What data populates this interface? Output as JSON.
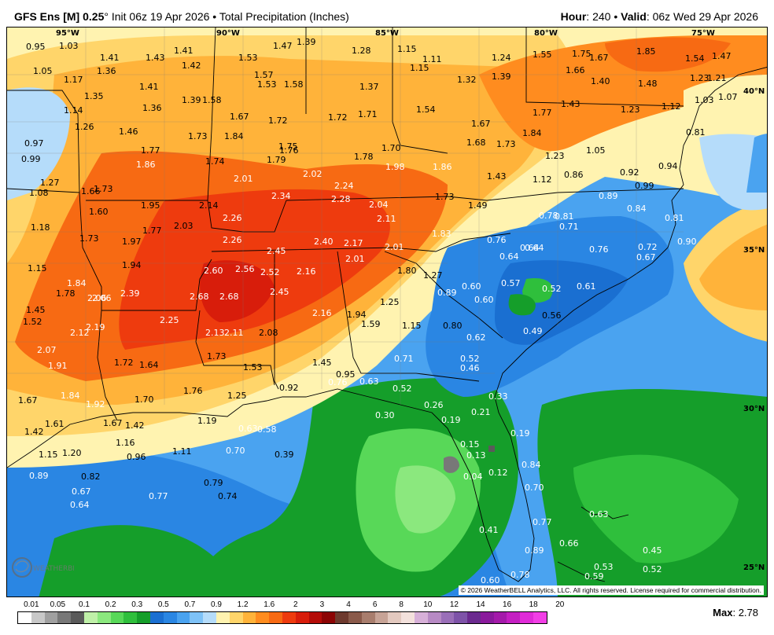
{
  "header": {
    "model": "GFS Ens [M] 0.25",
    "degree": "°",
    "init": "Init 06z 19 Apr 2026",
    "bullet": "•",
    "product": "Total Precipitation (Inches)",
    "hour_label": "Hour",
    "hour_value": ": 240",
    "valid_label": "Valid",
    "valid_value": ": 06z Wed 29 Apr 2026"
  },
  "map": {
    "copyright": "© 2026 WeatherBELL Analytics, LLC. All rights reserved. License required for commercial distribution.",
    "lon_labels": [
      "95°W",
      "90°W",
      "85°W",
      "80°W",
      "75°W"
    ],
    "lat_labels": [
      "40°N",
      "35°N",
      "30°N",
      "25°N"
    ],
    "values": [
      "0.95",
      "1.03",
      "1.41",
      "1.43",
      "1.41",
      "1.42",
      "1.53",
      "1.47",
      "1.39",
      "1.28",
      "1.15",
      "1.11",
      "1.15",
      "1.24",
      "1.55",
      "1.75",
      "1.67",
      "1.85",
      "1.54",
      "1.47",
      "1.05",
      "1.17",
      "1.36",
      "1.57",
      "1.58",
      "1.37",
      "1.32",
      "1.39",
      "1.66",
      "1.40",
      "1.48",
      "1.23",
      "1.21",
      "1.35",
      "1.41",
      "1.58",
      "1.53",
      "1.43",
      "1.03",
      "1.07",
      "1.14",
      "1.36",
      "1.39",
      "1.67",
      "1.72",
      "1.72",
      "1.71",
      "1.54",
      "1.77",
      "1.23",
      "1.12",
      "1.26",
      "1.46",
      "1.73",
      "1.84",
      "1.75",
      "1.67",
      "0.81",
      "0.97",
      "1.77",
      "1.76",
      "1.70",
      "1.68",
      "1.73",
      "1.84",
      "0.99",
      "1.86",
      "1.74",
      "1.79",
      "2.02",
      "1.78",
      "1.98",
      "1.86",
      "1.23",
      "1.05",
      "1.27",
      "1.73",
      "2.01",
      "2.24",
      "1.43",
      "1.12",
      "0.86",
      "0.92",
      "0.94",
      "0.99",
      "1.08",
      "1.66",
      "2.34",
      "2.28",
      "2.04",
      "1.73",
      "1.49",
      "0.89",
      "0.84",
      "1.60",
      "1.95",
      "2.14",
      "2.26",
      "2.11",
      "0.78",
      "0.81",
      "0.71",
      "1.18",
      "1.77",
      "2.03",
      "2.26",
      "1.83",
      "0.76",
      "0.72",
      "0.81",
      "1.73",
      "1.97",
      "2.40",
      "2.17",
      "2.01",
      "0.64",
      "0.64",
      "0.76",
      "0.67",
      "0.90",
      "1.15",
      "2.06",
      "2.45",
      "2.01",
      "0.60",
      "1.94",
      "2.60",
      "2.56",
      "2.52",
      "2.16",
      "1.80",
      "1.27",
      "0.64",
      "1.84",
      "1.78",
      "2.39",
      "2.68",
      "2.68",
      "2.45",
      "0.57",
      "0.52",
      "0.61",
      "1.45",
      "2.06",
      "0.89",
      "0.60",
      "1.52",
      "2.25",
      "2.16",
      "1.94",
      "1.59",
      "1.25",
      "0.56",
      "2.12",
      "2.19",
      "2.13",
      "2.11",
      "2.08",
      "1.15",
      "0.80",
      "0.49",
      "2.07",
      "0.62",
      "1.91",
      "1.72",
      "1.64",
      "1.73",
      "1.53",
      "1.45",
      "0.71",
      "0.52",
      "0.46",
      "0.95",
      "0.76",
      "0.63",
      "1.84",
      "1.92",
      "1.76",
      "0.92",
      "0.52",
      "1.67",
      "1.70",
      "1.25",
      "0.33",
      "0.26",
      "0.30",
      "0.19",
      "0.21",
      "1.42",
      "1.61",
      "1.67",
      "1.42",
      "1.19",
      "0.63",
      "0.58",
      "1.16",
      "0.19",
      "1.15",
      "1.20",
      "0.96",
      "1.11",
      "0.70",
      "0.39",
      "0.15",
      "0.13",
      "0.89",
      "0.82",
      "0.04",
      "0.12",
      "0.84",
      "0.79",
      "0.67",
      "0.77",
      "0.74",
      "0.70",
      "0.64",
      "0.63",
      "0.77",
      "0.41",
      "0.66",
      "0.89",
      "0.45",
      "0.53",
      "0.52",
      "0.78",
      "0.59",
      "0.60"
    ]
  },
  "legend": {
    "labels": [
      "0.01",
      "0.05",
      "0.1",
      "0.2",
      "0.3",
      "0.5",
      "0.7",
      "0.9",
      "1.2",
      "1.6",
      "2",
      "3",
      "4",
      "6",
      "8",
      "10",
      "12",
      "14",
      "16",
      "18",
      "20"
    ],
    "colors": [
      "#ffffff",
      "#c8c8c8",
      "#a0a0a0",
      "#787878",
      "#5a5a5a",
      "#bff0a8",
      "#8be87e",
      "#58d858",
      "#2fbf3c",
      "#159e2a",
      "#1a6fd1",
      "#2a86e3",
      "#4aa3f0",
      "#7ec2f7",
      "#b5dcfa",
      "#fff3b0",
      "#ffd56a",
      "#ffb33a",
      "#ff8c1f",
      "#f76a13",
      "#ee3b0e",
      "#d81d0b",
      "#b40c08",
      "#8c0404",
      "#6e3a2e",
      "#8a5a4a",
      "#a87d6d",
      "#c7a396",
      "#e3c9bf",
      "#f3e1dc",
      "#d7b0d8",
      "#b78ac4",
      "#9a6fb8",
      "#7e53a8",
      "#6b2a8f",
      "#8a1a9c",
      "#a41aaa",
      "#c41fc2",
      "#e02bd8",
      "#f23ee6"
    ],
    "max_label": "Max",
    "max_value": ": 2.78"
  }
}
